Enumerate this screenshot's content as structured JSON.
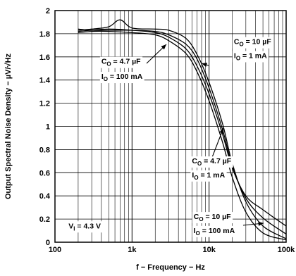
{
  "chart_data": {
    "type": "line",
    "xlabel": "f − Frequency − Hz",
    "ylabel": "Output Spectral Noise Density − µV/√Hz",
    "x_scale": "log",
    "xlim": [
      100,
      100000
    ],
    "ylim": [
      0,
      2
    ],
    "grid": true,
    "x_ticks": [
      {
        "value": 100,
        "label": "100"
      },
      {
        "value": 1000,
        "label": "1k"
      },
      {
        "value": 10000,
        "label": "10k"
      },
      {
        "value": 100000,
        "label": "100k"
      }
    ],
    "y_ticks": [
      {
        "value": 0,
        "label": "0"
      },
      {
        "value": 0.2,
        "label": "0.2"
      },
      {
        "value": 0.4,
        "label": "0.4"
      },
      {
        "value": 0.6,
        "label": "0.6"
      },
      {
        "value": 0.8,
        "label": "0.8"
      },
      {
        "value": 1,
        "label": "1"
      },
      {
        "value": 1.2,
        "label": "1.2"
      },
      {
        "value": 1.4,
        "label": "1.4"
      },
      {
        "value": 1.6,
        "label": "1.6"
      },
      {
        "value": 1.8,
        "label": "1.8"
      },
      {
        "value": 2,
        "label": "2"
      }
    ],
    "series": [
      {
        "color": "#000000",
        "x": [
          200,
          300,
          500,
          700,
          1000,
          2000,
          3000,
          5000,
          7000,
          10000,
          15000,
          20000,
          30000,
          50000,
          100000
        ],
        "y": [
          1.83,
          1.84,
          1.86,
          1.92,
          1.85,
          1.84,
          1.83,
          1.76,
          1.62,
          1.38,
          1.02,
          0.68,
          0.35,
          0.14,
          0.03
        ]
      },
      {
        "color": "#000000",
        "x": [
          200,
          300,
          500,
          1000,
          2000,
          3000,
          5000,
          7000,
          10000,
          15000,
          20000,
          30000,
          50000,
          100000
        ],
        "y": [
          1.84,
          1.83,
          1.83,
          1.83,
          1.82,
          1.79,
          1.71,
          1.58,
          1.33,
          0.97,
          0.66,
          0.38,
          0.21,
          0.07
        ]
      },
      {
        "color": "#000000",
        "x": [
          200,
          300,
          500,
          1000,
          2000,
          3000,
          5000,
          7000,
          10000,
          15000,
          20000,
          30000,
          50000,
          100000
        ],
        "y": [
          1.82,
          1.83,
          1.84,
          1.83,
          1.81,
          1.77,
          1.67,
          1.52,
          1.28,
          0.93,
          0.64,
          0.4,
          0.28,
          0.14
        ]
      },
      {
        "color": "#000000",
        "x": [
          200,
          300,
          500,
          1000,
          2000,
          3000,
          5000,
          7000,
          10000,
          15000,
          20000,
          30000,
          50000,
          100000
        ],
        "y": [
          1.81,
          1.82,
          1.82,
          1.81,
          1.79,
          1.74,
          1.63,
          1.47,
          1.22,
          0.86,
          0.56,
          0.26,
          0.08,
          0.02
        ]
      }
    ],
    "annotations": [
      {
        "main": "C",
        "sub": "O",
        "rest": " = 10 µF",
        "x": 21000,
        "y": 1.71
      },
      {
        "main": "I",
        "sub": "O",
        "rest": " = 1 mA",
        "x": 21000,
        "y": 1.59
      },
      {
        "main": "C",
        "sub": "O",
        "rest": " = 4.7 µF",
        "x": 400,
        "y": 1.54
      },
      {
        "main": "I",
        "sub": "O",
        "rest": " = 100 mA",
        "x": 400,
        "y": 1.41
      },
      {
        "main": "C",
        "sub": "O",
        "rest": " = 4.7 µF",
        "x": 6000,
        "y": 0.68
      },
      {
        "main": "I",
        "sub": "O",
        "rest": " = 1 mA",
        "x": 6000,
        "y": 0.56
      },
      {
        "main": "C",
        "sub": "O",
        "rest": " = 10 µF",
        "x": 6300,
        "y": 0.2
      },
      {
        "main": "I",
        "sub": "O",
        "rest": " = 100 mA",
        "x": 6300,
        "y": 0.08
      },
      {
        "main": "V",
        "sub": "I",
        "rest": " = 4.3 V",
        "x": 150,
        "y": 0.12
      }
    ]
  }
}
